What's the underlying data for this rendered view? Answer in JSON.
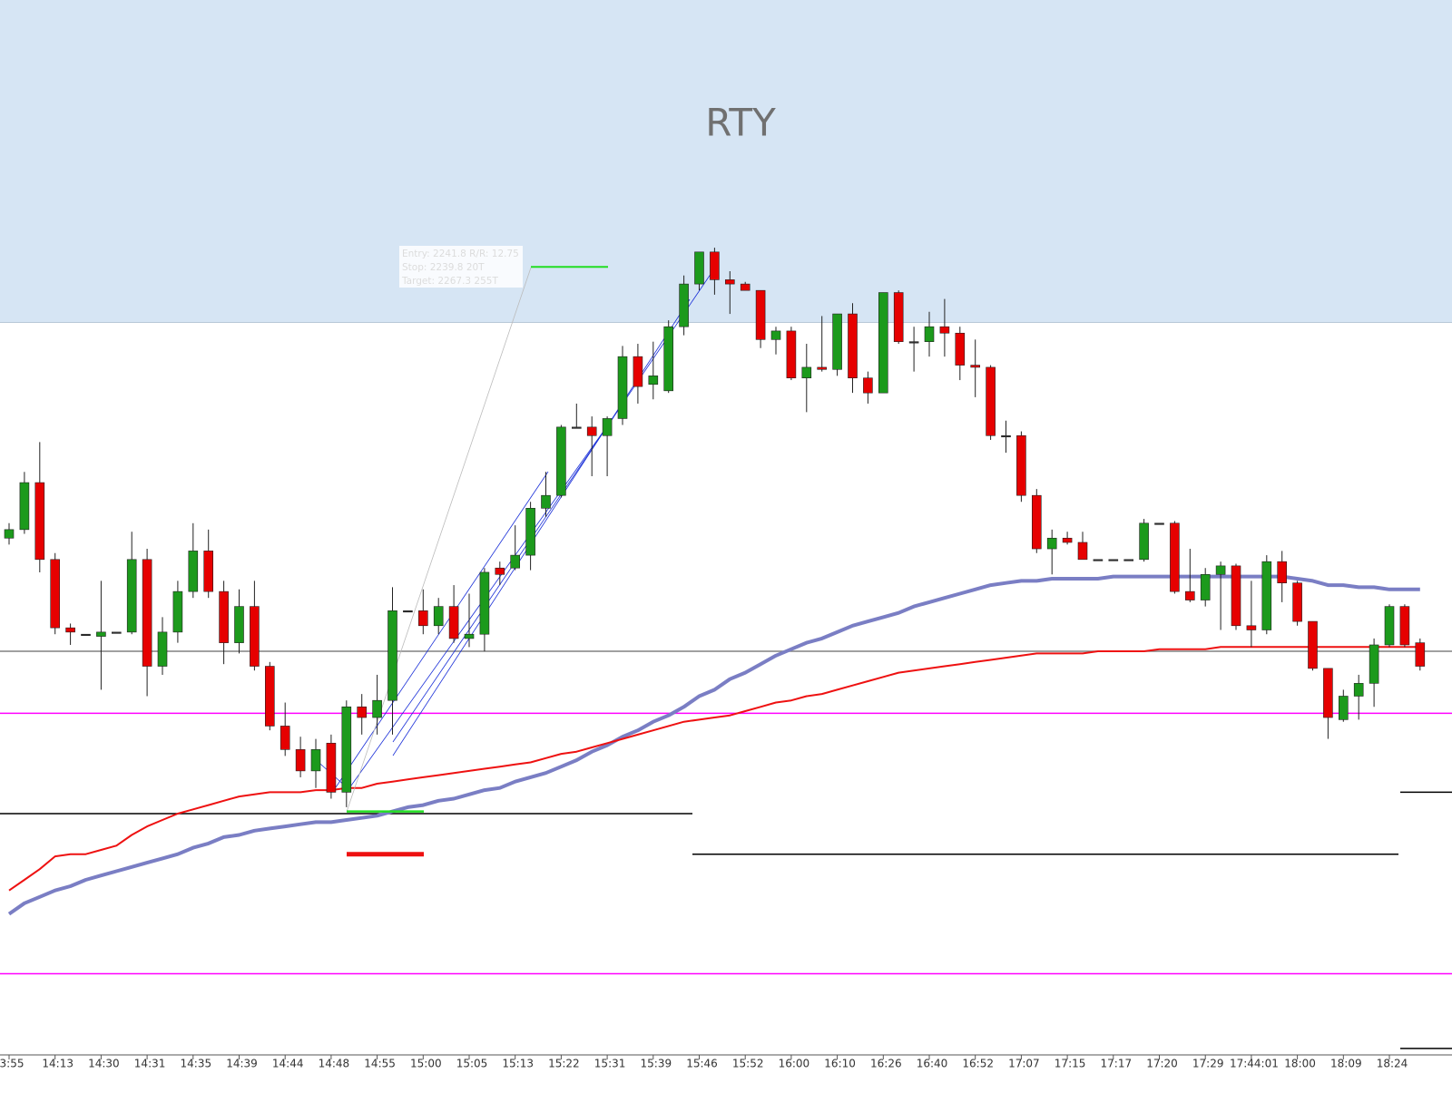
{
  "chart_data": {
    "type": "candlestick",
    "title": "RTY",
    "ylim": [
      2230.4,
      2279.8
    ],
    "zone_low": 2264.7,
    "up_color": "#1c9a1c",
    "down_color": "#e60000",
    "categories": [
      "3:55",
      null,
      null,
      "14:13",
      null,
      null,
      "14:30",
      null,
      null,
      "14:31",
      null,
      null,
      "14:35",
      null,
      null,
      "14:39",
      null,
      null,
      "14:44",
      null,
      null,
      "14:48",
      null,
      null,
      "14:55",
      null,
      null,
      "15:00",
      null,
      null,
      "15:05",
      null,
      null,
      "15:13",
      null,
      null,
      "15:22",
      null,
      null,
      "15:31",
      null,
      null,
      "15:39",
      null,
      null,
      "15:46",
      null,
      null,
      "15:52",
      null,
      null,
      "16:00",
      null,
      null,
      "16:10",
      null,
      null,
      "16:26",
      null,
      null,
      "16:40",
      null,
      null,
      "16:52",
      null,
      null,
      "17:07",
      null,
      null,
      "17:15",
      null,
      null,
      "17:17",
      null,
      null,
      "17:20",
      null,
      null,
      "17:29",
      null,
      null,
      "17:44:01",
      null,
      null,
      "18:00",
      null,
      null,
      "18:09",
      null,
      null,
      "18:24",
      null,
      null
    ],
    "open": [
      2254.6,
      2255.0,
      2257.2,
      2253.6,
      2250.4,
      2250.1,
      2250.0,
      2250.2,
      2250.2,
      2253.6,
      2248.6,
      2250.2,
      2252.1,
      2254.0,
      2252.1,
      2249.7,
      2251.4,
      2248.6,
      2245.8,
      2244.7,
      2243.7,
      2245.0,
      2242.7,
      2246.7,
      2246.2,
      2247.0,
      2251.2,
      2251.2,
      2250.5,
      2251.4,
      2249.9,
      2250.1,
      2253.2,
      2253.2,
      2253.8,
      2256.0,
      2256.6,
      2259.8,
      2259.8,
      2259.4,
      2260.2,
      2263.1,
      2261.8,
      2261.5,
      2264.5,
      2266.5,
      2268.0,
      2266.7,
      2266.5,
      2266.2,
      2263.9,
      2264.3,
      2262.1,
      2262.6,
      2262.5,
      2265.1,
      2262.1,
      2261.4,
      2266.1,
      2263.8,
      2263.8,
      2264.5,
      2264.2,
      2262.7,
      2262.6,
      2259.4,
      2259.4,
      2256.6,
      2254.1,
      2254.6,
      2254.4,
      2253.6,
      2253.6,
      2253.6,
      2253.6,
      2255.3,
      2255.3,
      2252.1,
      2251.7,
      2252.9,
      2253.3,
      2250.5,
      2250.3,
      2253.5,
      2252.5,
      2250.7,
      2248.5,
      2246.1,
      2247.2,
      2247.8,
      2249.6,
      2251.4,
      2249.7
    ],
    "high": [
      2255.3,
      2257.7,
      2259.1,
      2253.9,
      2250.6,
      2250.1,
      2252.6,
      2250.2,
      2254.9,
      2254.1,
      2250.9,
      2252.6,
      2255.3,
      2255.0,
      2252.6,
      2252.2,
      2252.6,
      2248.8,
      2246.9,
      2245.3,
      2245.2,
      2245.4,
      2247.0,
      2247.3,
      2248.2,
      2252.3,
      2251.2,
      2252.2,
      2251.8,
      2252.4,
      2252.0,
      2253.2,
      2253.5,
      2255.2,
      2256.3,
      2257.7,
      2259.9,
      2260.9,
      2260.3,
      2260.3,
      2263.6,
      2263.7,
      2263.8,
      2264.8,
      2266.9,
      2268.0,
      2268.2,
      2267.1,
      2266.6,
      2266.2,
      2264.5,
      2264.5,
      2263.7,
      2265.0,
      2265.1,
      2265.6,
      2262.4,
      2266.1,
      2266.2,
      2264.5,
      2265.2,
      2265.8,
      2264.5,
      2263.9,
      2262.7,
      2260.1,
      2259.6,
      2256.9,
      2255.0,
      2254.9,
      2254.9,
      2253.6,
      2253.6,
      2253.6,
      2255.5,
      2255.3,
      2255.4,
      2254.1,
      2253.2,
      2253.5,
      2253.4,
      2252.6,
      2253.8,
      2254.0,
      2252.6,
      2250.7,
      2248.5,
      2247.5,
      2248.2,
      2249.9,
      2251.5,
      2251.5,
      2249.9
    ],
    "low": [
      2254.3,
      2254.8,
      2253.0,
      2250.1,
      2249.6,
      2250.1,
      2247.5,
      2250.2,
      2250.1,
      2247.2,
      2248.2,
      2249.7,
      2251.8,
      2251.8,
      2248.7,
      2249.2,
      2248.4,
      2245.6,
      2244.4,
      2243.4,
      2242.9,
      2242.4,
      2242.0,
      2245.4,
      2245.4,
      2245.4,
      2251.2,
      2250.1,
      2250.1,
      2249.7,
      2249.5,
      2249.3,
      2252.4,
      2253.1,
      2253.1,
      2255.6,
      2256.5,
      2259.8,
      2257.5,
      2257.5,
      2259.9,
      2260.9,
      2261.1,
      2261.4,
      2264.1,
      2266.2,
      2266.0,
      2265.1,
      2266.2,
      2263.5,
      2263.2,
      2262.0,
      2260.5,
      2262.4,
      2262.2,
      2261.4,
      2260.9,
      2261.4,
      2263.7,
      2262.4,
      2263.1,
      2263.1,
      2262.0,
      2261.2,
      2259.2,
      2258.6,
      2256.3,
      2253.9,
      2252.9,
      2254.3,
      2253.6,
      2253.6,
      2253.6,
      2253.6,
      2253.5,
      2255.3,
      2252.0,
      2251.6,
      2251.4,
      2250.3,
      2250.3,
      2249.5,
      2250.1,
      2251.6,
      2250.5,
      2248.4,
      2245.2,
      2246.0,
      2246.1,
      2246.7,
      2249.5,
      2249.5,
      2248.4
    ],
    "close": [
      2255.0,
      2257.2,
      2253.6,
      2250.4,
      2250.2,
      2250.1,
      2250.2,
      2250.2,
      2253.6,
      2248.6,
      2250.2,
      2252.1,
      2254.0,
      2252.1,
      2249.7,
      2251.4,
      2248.6,
      2245.8,
      2244.7,
      2243.7,
      2244.7,
      2242.7,
      2246.7,
      2246.2,
      2247.0,
      2251.2,
      2251.2,
      2250.5,
      2251.4,
      2249.9,
      2250.1,
      2253.0,
      2252.9,
      2253.8,
      2256.0,
      2256.6,
      2259.8,
      2259.8,
      2259.4,
      2260.2,
      2263.1,
      2261.7,
      2262.2,
      2264.5,
      2266.5,
      2268.0,
      2266.7,
      2266.5,
      2266.2,
      2263.9,
      2264.3,
      2262.1,
      2262.6,
      2262.5,
      2265.1,
      2262.1,
      2261.4,
      2266.1,
      2263.8,
      2263.8,
      2264.5,
      2264.2,
      2262.7,
      2262.6,
      2259.4,
      2259.4,
      2256.6,
      2254.1,
      2254.6,
      2254.4,
      2253.6,
      2253.6,
      2253.6,
      2253.6,
      2255.3,
      2255.3,
      2252.1,
      2251.7,
      2252.9,
      2253.3,
      2250.5,
      2250.3,
      2253.5,
      2252.5,
      2250.7,
      2248.5,
      2246.2,
      2247.2,
      2247.8,
      2249.6,
      2251.4,
      2249.6,
      2248.6
    ],
    "lines": [
      {
        "color": "#7a7ec4",
        "values": [
          2237.0,
          2237.5,
          2237.8,
          2238.1,
          2238.3,
          2238.6,
          2238.8,
          2239.0,
          2239.2,
          2239.4,
          2239.6,
          2239.8,
          2240.1,
          2240.3,
          2240.6,
          2240.7,
          2240.9,
          2241.0,
          2241.1,
          2241.2,
          2241.3,
          2241.3,
          2241.4,
          2241.5,
          2241.6,
          2241.8,
          2242.0,
          2242.1,
          2242.3,
          2242.4,
          2242.6,
          2242.8,
          2242.9,
          2243.2,
          2243.4,
          2243.6,
          2243.9,
          2244.2,
          2244.6,
          2244.9,
          2245.3,
          2245.6,
          2246.0,
          2246.3,
          2246.7,
          2247.2,
          2247.5,
          2248.0,
          2248.3,
          2248.7,
          2249.1,
          2249.4,
          2249.7,
          2249.9,
          2250.2,
          2250.5,
          2250.7,
          2250.9,
          2251.1,
          2251.4,
          2251.6,
          2251.8,
          2252.0,
          2252.2,
          2252.4,
          2252.5,
          2252.6,
          2252.6,
          2252.7,
          2252.7,
          2252.7,
          2252.7,
          2252.8,
          2252.8,
          2252.8,
          2252.8,
          2252.8,
          2252.8,
          2252.8,
          2252.8,
          2252.8,
          2252.8,
          2252.8,
          2252.8,
          2252.7,
          2252.6,
          2252.4,
          2252.4,
          2252.3,
          2252.3,
          2252.2,
          2252.2,
          2252.2
        ]
      },
      {
        "color": "#ee1111",
        "values": [
          2238.1,
          2238.6,
          2239.1,
          2239.7,
          2239.8,
          2239.8,
          2240.0,
          2240.2,
          2240.7,
          2241.1,
          2241.4,
          2241.7,
          2241.9,
          2242.1,
          2242.3,
          2242.5,
          2242.6,
          2242.7,
          2242.7,
          2242.7,
          2242.8,
          2242.8,
          2242.9,
          2242.9,
          2243.1,
          2243.2,
          2243.3,
          2243.4,
          2243.5,
          2243.6,
          2243.7,
          2243.8,
          2243.9,
          2244.0,
          2244.1,
          2244.3,
          2244.5,
          2244.6,
          2244.8,
          2245.0,
          2245.2,
          2245.4,
          2245.6,
          2245.8,
          2246.0,
          2246.1,
          2246.2,
          2246.3,
          2246.5,
          2246.7,
          2246.9,
          2247.0,
          2247.2,
          2247.3,
          2247.5,
          2247.7,
          2247.9,
          2248.1,
          2248.3,
          2248.4,
          2248.5,
          2248.6,
          2248.7,
          2248.8,
          2248.9,
          2249.0,
          2249.1,
          2249.2,
          2249.2,
          2249.2,
          2249.2,
          2249.3,
          2249.3,
          2249.3,
          2249.3,
          2249.4,
          2249.4,
          2249.4,
          2249.4,
          2249.5,
          2249.5,
          2249.5,
          2249.5,
          2249.5,
          2249.5,
          2249.5,
          2249.5,
          2249.5,
          2249.5,
          2249.5,
          2249.5,
          2249.5,
          2249.5
        ]
      }
    ],
    "levels": [
      {
        "value": 2249.3,
        "color": "#808080"
      },
      {
        "value": 2246.4,
        "color": "#ff00ff"
      },
      {
        "value": 2234.2,
        "color": "#ff00ff"
      },
      {
        "value": 2241.7,
        "color": "#000000"
      },
      {
        "value": 2239.8,
        "color": "#000000"
      },
      {
        "value": 2242.7,
        "color": "#000000"
      },
      {
        "value": 2230.7,
        "color": "#000000"
      }
    ],
    "trade": [
      {
        "value": 2241.8,
        "label": "Entry: 2241.8  R/R: 12.75",
        "color": "#22dd22"
      },
      {
        "value": 2239.8,
        "label": "Stop: 2239.8  20T",
        "color": "#ee1111"
      },
      {
        "value": 2267.3,
        "label": "Target: 2267.3  255T",
        "color": "#22dd22"
      }
    ]
  }
}
